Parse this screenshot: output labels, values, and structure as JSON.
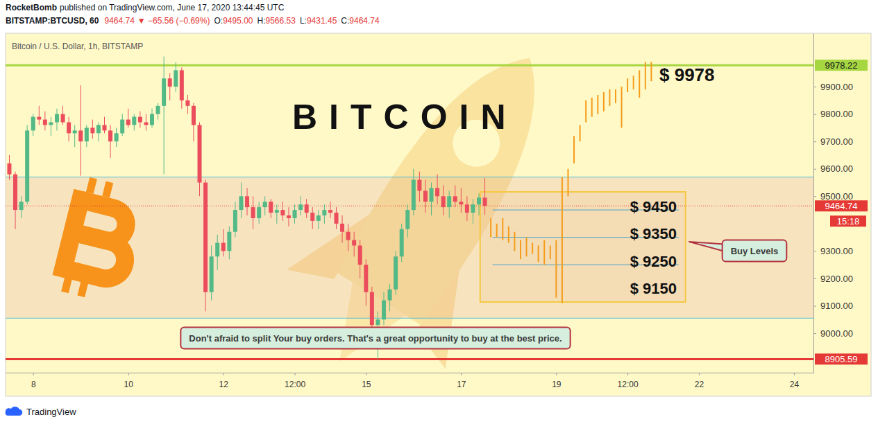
{
  "header": {
    "author": "RocketBomb",
    "published": "published on TradingView.com, June 17, 2020 13:44:45 UTC",
    "symbol": "BITSTAMP:BTCUSD, 60",
    "last": "9464.74",
    "change": "▼ −65.56 (−0.69%)",
    "ohlc": [
      {
        "label": "O:",
        "value": "9495.00"
      },
      {
        "label": "H:",
        "value": "9566.53"
      },
      {
        "label": "L:",
        "value": "9431.45"
      },
      {
        "label": "C:",
        "value": "9464.74"
      }
    ]
  },
  "footer": {
    "brand": "TradingView"
  },
  "chart_data": {
    "type": "candlestick",
    "title": "Bitcoin / U.S. Dollar, 1h, BITSTAMP",
    "headline": "BITCOIN",
    "note": "Don't afraid to split Your buy orders. That's a great opportunity to buy at the best price.",
    "grid": false,
    "xlim": [
      7.42,
      24.41
    ],
    "xticks": [
      8,
      10,
      12,
      {
        "value": 13.5,
        "label": "12:00"
      },
      15,
      17,
      19,
      {
        "value": 20.5,
        "label": "12:00"
      },
      22,
      24
    ],
    "ylim": [
      8856,
      10095
    ],
    "yticks": [
      {
        "value": 9000,
        "label": "9000.00"
      },
      {
        "value": 9100,
        "label": "9100.00"
      },
      {
        "value": 9200,
        "label": "9200.00"
      },
      {
        "value": 9300,
        "label": "9300.00"
      },
      {
        "value": 9500,
        "label": "9500.00"
      },
      {
        "value": 9600,
        "label": "9600.00"
      },
      {
        "value": 9700,
        "label": "9700.00"
      },
      {
        "value": 9800,
        "label": "9800.00"
      },
      {
        "value": 9900,
        "label": "9900.00"
      }
    ],
    "series": [
      {
        "type": "candlestick",
        "x": [
          7.5,
          7.625,
          7.75,
          7.875,
          8,
          8.125,
          8.25,
          8.375,
          8.5,
          8.625,
          8.75,
          8.875,
          9,
          9.125,
          9.25,
          9.375,
          9.5,
          9.625,
          9.75,
          9.875,
          10,
          10.125,
          10.25,
          10.375,
          10.5,
          10.625,
          10.75,
          10.875,
          11,
          11.125,
          11.25,
          11.375,
          11.5,
          11.625,
          11.75,
          11.875,
          12,
          12.125,
          12.25,
          12.375,
          12.5,
          12.625,
          12.75,
          12.875,
          13,
          13.125,
          13.25,
          13.375,
          13.5,
          13.625,
          13.75,
          13.875,
          14,
          14.125,
          14.25,
          14.375,
          14.5,
          14.625,
          14.75,
          14.875,
          15,
          15.125,
          15.25,
          15.375,
          15.5,
          15.625,
          15.75,
          15.875,
          16,
          16.125,
          16.25,
          16.375,
          16.5,
          16.625,
          16.75,
          16.875,
          17,
          17.125,
          17.25,
          17.375,
          17.5
        ],
        "open": [
          9620,
          9580,
          9450,
          9480,
          9740,
          9790,
          9780,
          9760,
          9770,
          9800,
          9770,
          9730,
          9740,
          9700,
          9750,
          9730,
          9760,
          9740,
          9700,
          9730,
          9780,
          9760,
          9790,
          9770,
          9760,
          9800,
          9830,
          9930,
          9900,
          9960,
          9850,
          9830,
          9760,
          9550,
          9150,
          9280,
          9330,
          9300,
          9370,
          9450,
          9500,
          9460,
          9420,
          9460,
          9480,
          9440,
          9450,
          9430,
          9420,
          9450,
          9470,
          9440,
          9410,
          9430,
          9450,
          9440,
          9400,
          9370,
          9340,
          9320,
          9250,
          9150,
          9030,
          9050,
          9120,
          9160,
          9280,
          9380,
          9450,
          9560,
          9520,
          9480,
          9530,
          9500,
          9460,
          9500,
          9480,
          9470,
          9440,
          9470,
          9495
        ],
        "high": [
          9650,
          9590,
          9500,
          9760,
          9800,
          9830,
          9810,
          9790,
          9820,
          9830,
          9790,
          9760,
          9905,
          9760,
          9780,
          9770,
          9790,
          9760,
          9750,
          9800,
          9820,
          9800,
          9810,
          9800,
          9820,
          9840,
          10010,
          9950,
          9990,
          9970,
          9870,
          9840,
          9770,
          9560,
          9320,
          9360,
          9380,
          9390,
          9480,
          9550,
          9530,
          9500,
          9480,
          9500,
          9490,
          9470,
          9480,
          9460,
          9470,
          9500,
          9490,
          9460,
          9450,
          9470,
          9480,
          9460,
          9430,
          9400,
          9370,
          9340,
          9270,
          9170,
          9080,
          9150,
          9180,
          9300,
          9400,
          9470,
          9600,
          9590,
          9560,
          9550,
          9580,
          9540,
          9520,
          9540,
          9530,
          9500,
          9490,
          9510,
          9566.53
        ],
        "low": [
          9560,
          9380,
          9420,
          9470,
          9720,
          9760,
          9740,
          9720,
          9740,
          9760,
          9700,
          9680,
          9575,
          9680,
          9710,
          9700,
          9730,
          9640,
          9680,
          9720,
          9750,
          9740,
          9750,
          9740,
          9750,
          9780,
          9580,
          9850,
          9880,
          9820,
          9800,
          9700,
          9500,
          9080,
          9120,
          9230,
          9280,
          9270,
          9350,
          9420,
          9430,
          9380,
          9400,
          9430,
          9420,
          9400,
          9410,
          9390,
          9400,
          9430,
          9420,
          9380,
          9380,
          9400,
          9420,
          9380,
          9330,
          9300,
          9280,
          9200,
          9100,
          9000,
          8905,
          9030,
          9080,
          9140,
          9260,
          9350,
          9430,
          9480,
          9440,
          9430,
          9470,
          9430,
          9420,
          9460,
          9440,
          9410,
          9400,
          9430,
          9431.45
        ],
        "close": [
          9580,
          9450,
          9480,
          9740,
          9790,
          9780,
          9760,
          9770,
          9800,
          9770,
          9730,
          9740,
          9700,
          9750,
          9730,
          9760,
          9740,
          9700,
          9730,
          9780,
          9760,
          9790,
          9770,
          9760,
          9800,
          9830,
          9930,
          9900,
          9960,
          9850,
          9830,
          9760,
          9550,
          9150,
          9280,
          9330,
          9300,
          9370,
          9450,
          9500,
          9460,
          9420,
          9460,
          9480,
          9440,
          9450,
          9430,
          9420,
          9450,
          9470,
          9440,
          9410,
          9430,
          9450,
          9440,
          9400,
          9370,
          9340,
          9320,
          9250,
          9150,
          9030,
          9050,
          9120,
          9160,
          9280,
          9380,
          9450,
          9560,
          9520,
          9480,
          9530,
          9500,
          9460,
          9500,
          9480,
          9470,
          9440,
          9470,
          9495,
          9464.74
        ]
      },
      {
        "type": "range_bar",
        "color": "#f59c1a",
        "x": [
          17.625,
          17.75,
          17.875,
          18,
          18.125,
          18.25,
          18.375,
          18.5,
          18.625,
          18.75,
          18.875,
          19,
          19.125,
          19.25,
          19.375,
          19.5,
          19.625,
          19.75,
          19.875,
          20,
          20.125,
          20.25,
          20.375,
          20.5,
          20.625,
          20.75,
          20.875,
          21
        ],
        "high": [
          9420,
          9400,
          9420,
          9390,
          9370,
          9340,
          9350,
          9330,
          9320,
          9340,
          9320,
          9340,
          9570,
          9600,
          9720,
          9760,
          9850,
          9860,
          9870,
          9880,
          9890,
          9890,
          9900,
          9930,
          9940,
          9960,
          9990,
          9990
        ],
        "low": [
          9350,
          9350,
          9340,
          9330,
          9300,
          9270,
          9280,
          9290,
          9260,
          9250,
          9270,
          9130,
          9110,
          9500,
          9620,
          9700,
          9770,
          9790,
          9800,
          9810,
          9830,
          9840,
          9750,
          9880,
          9890,
          9860,
          9890,
          9920
        ]
      }
    ],
    "horizontal_lines": [
      {
        "value": 9978.22,
        "label": "9978.22",
        "color": "#a6d640"
      },
      {
        "value": 8905.59,
        "label": "8905.59",
        "color": "#e53935"
      }
    ],
    "last_price": {
      "value": 9464.74,
      "label": "9464.74",
      "countdown": "15:18",
      "color": "#e53935"
    },
    "band": {
      "low": 9055,
      "high": 9570,
      "color": "#4fbfd6"
    },
    "target": {
      "value": 9978,
      "label": "$ 9978"
    },
    "buy_zone": {
      "xrange": [
        17.4,
        21.72
      ],
      "yrange": [
        9114,
        9516
      ],
      "color": "#f5c842",
      "label": "Buy Levels",
      "levels": [
        {
          "value": 9450,
          "label": "$ 9450"
        },
        {
          "value": 9350,
          "label": "$ 9350"
        },
        {
          "value": 9250,
          "label": "$ 9250"
        },
        {
          "value": 9150,
          "label": "$ 9150"
        }
      ],
      "level_lines": [
        9450,
        9350,
        9250
      ]
    }
  }
}
